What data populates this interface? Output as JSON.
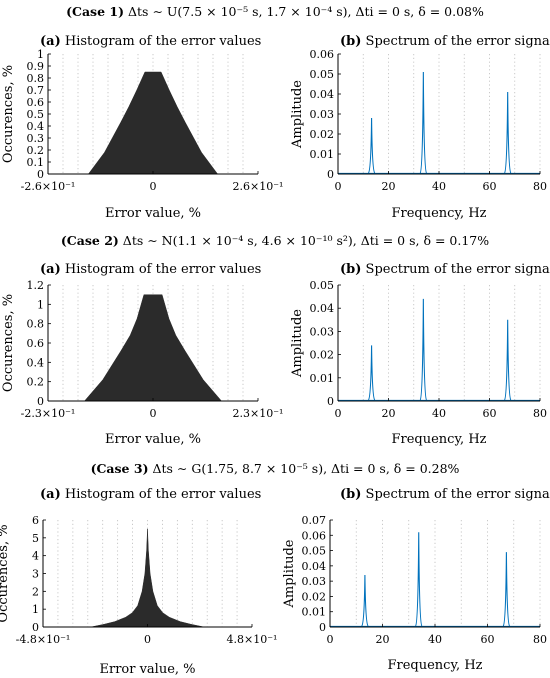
{
  "cases": [
    {
      "prefix": "(Case 1)",
      "formula": "Δts ∼ U(7.5 × 10⁻⁵ s, 1.7 × 10⁻⁴ s), Δti = 0 s, δ = 0.08%"
    },
    {
      "prefix": "(Case 2)",
      "formula": "Δts ∼ N(1.1 × 10⁻⁴ s, 4.6 × 10⁻¹⁰ s²), Δti = 0 s, δ = 0.17%"
    },
    {
      "prefix": "(Case 3)",
      "formula": "Δts ∼ G(1.75, 8.7 × 10⁻⁵ s), Δti = 0 s, δ = 0.28%"
    }
  ],
  "chart_data": [
    {
      "type": "area",
      "panel_label": "(a)",
      "title": "Histogram of the error values",
      "xlabel": "Error value, %",
      "ylabel": "Occurences, %",
      "xlim": [
        -0.26,
        0.26
      ],
      "ylim": [
        0,
        1
      ],
      "yticks": [
        "0",
        "0.1",
        "0.2",
        "0.3",
        "0.4",
        "0.5",
        "0.6",
        "0.7",
        "0.8",
        "0.9",
        "1"
      ],
      "xticks": [
        {
          "v": -0.26,
          "label": "-2.6×10⁻¹"
        },
        {
          "v": 0,
          "label": "0"
        },
        {
          "v": 0.26,
          "label": "2.6×10⁻¹"
        }
      ],
      "x": [
        -0.16,
        -0.12,
        -0.08,
        -0.06,
        -0.04,
        -0.02,
        0.02,
        0.04,
        0.06,
        0.08,
        0.12,
        0.16
      ],
      "values": [
        0,
        0.18,
        0.43,
        0.56,
        0.7,
        0.85,
        0.85,
        0.7,
        0.56,
        0.43,
        0.18,
        0
      ],
      "color": "#2b2b2b",
      "grid": "vertical-dotted"
    },
    {
      "type": "line",
      "panel_label": "(b)",
      "title": "Spectrum of the error signal",
      "xlabel": "Frequency, Hz",
      "ylabel": "Amplitude",
      "xlim": [
        0,
        80
      ],
      "ylim": [
        0,
        0.06
      ],
      "yticks": [
        "0",
        "0.01",
        "0.02",
        "0.03",
        "0.04",
        "0.05",
        "0.06"
      ],
      "xticks": [
        "0",
        "20",
        "40",
        "60",
        "80"
      ],
      "peaks": [
        {
          "x": 13.3,
          "y": 0.028
        },
        {
          "x": 33.8,
          "y": 0.051
        },
        {
          "x": 67.2,
          "y": 0.041
        }
      ],
      "color": "#0072BD",
      "grid": "vertical-dotted"
    },
    {
      "type": "area",
      "panel_label": "(a)",
      "title": "Histogram of the error values",
      "xlabel": "Error value, %",
      "ylabel": "Occurences, %",
      "xlim": [
        -0.23,
        0.23
      ],
      "ylim": [
        0,
        1.2
      ],
      "yticks": [
        "0",
        "0.2",
        "0.4",
        "0.6",
        "0.8",
        "1",
        "1.2"
      ],
      "xticks": [
        {
          "v": -0.23,
          "label": "-2.3×10⁻¹"
        },
        {
          "v": 0,
          "label": "0"
        },
        {
          "v": 0.23,
          "label": "2.3×10⁻¹"
        }
      ],
      "x": [
        -0.15,
        -0.11,
        -0.07,
        -0.05,
        -0.035,
        -0.02,
        0.02,
        0.035,
        0.05,
        0.07,
        0.11,
        0.15
      ],
      "values": [
        0,
        0.22,
        0.52,
        0.68,
        0.85,
        1.1,
        1.1,
        0.85,
        0.68,
        0.52,
        0.22,
        0
      ],
      "color": "#2b2b2b",
      "grid": "vertical-dotted"
    },
    {
      "type": "line",
      "panel_label": "(b)",
      "title": "Spectrum of the error signal",
      "xlabel": "Frequency, Hz",
      "ylabel": "Amplitude",
      "xlim": [
        0,
        80
      ],
      "ylim": [
        0,
        0.05
      ],
      "yticks": [
        "0",
        "0.01",
        "0.02",
        "0.03",
        "0.04",
        "0.05"
      ],
      "xticks": [
        "0",
        "20",
        "40",
        "60",
        "80"
      ],
      "peaks": [
        {
          "x": 13.3,
          "y": 0.024
        },
        {
          "x": 33.8,
          "y": 0.044
        },
        {
          "x": 67.2,
          "y": 0.035
        }
      ],
      "color": "#0072BD",
      "grid": "vertical-dotted"
    },
    {
      "type": "area",
      "panel_label": "(a)",
      "title": "Histogram of the error values",
      "xlabel": "Error value, %",
      "ylabel": "Occurences, %",
      "xlim": [
        -0.48,
        0.48
      ],
      "ylim": [
        0,
        6
      ],
      "yticks": [
        "0",
        "1",
        "2",
        "3",
        "4",
        "5",
        "6"
      ],
      "xticks": [
        {
          "v": -0.48,
          "label": "-4.8×10⁻¹"
        },
        {
          "v": 0,
          "label": "0"
        },
        {
          "v": 0.48,
          "label": "4.8×10⁻¹"
        }
      ],
      "x": [
        -0.26,
        -0.2,
        -0.15,
        -0.1,
        -0.07,
        -0.045,
        -0.025,
        -0.012,
        -0.004,
        0,
        0.004,
        0.012,
        0.025,
        0.045,
        0.07,
        0.1,
        0.15,
        0.2,
        0.26
      ],
      "values": [
        0,
        0.15,
        0.3,
        0.55,
        0.8,
        1.2,
        2.0,
        3.0,
        4.3,
        5.5,
        4.3,
        3.0,
        2.0,
        1.2,
        0.8,
        0.55,
        0.3,
        0.15,
        0
      ],
      "color": "#2b2b2b",
      "grid": "vertical-dotted"
    },
    {
      "type": "line",
      "panel_label": "(b)",
      "title": "Spectrum of the error signal",
      "xlabel": "Frequency, Hz",
      "ylabel": "Amplitude",
      "xlim": [
        0,
        80
      ],
      "ylim": [
        0,
        0.07
      ],
      "yticks": [
        "0",
        "0.01",
        "0.02",
        "0.03",
        "0.04",
        "0.05",
        "0.06",
        "0.07"
      ],
      "xticks": [
        "0",
        "20",
        "40",
        "60",
        "80"
      ],
      "peaks": [
        {
          "x": 13.3,
          "y": 0.034
        },
        {
          "x": 33.8,
          "y": 0.062
        },
        {
          "x": 67.2,
          "y": 0.049
        }
      ],
      "color": "#0072BD",
      "grid": "vertical-dotted"
    }
  ]
}
